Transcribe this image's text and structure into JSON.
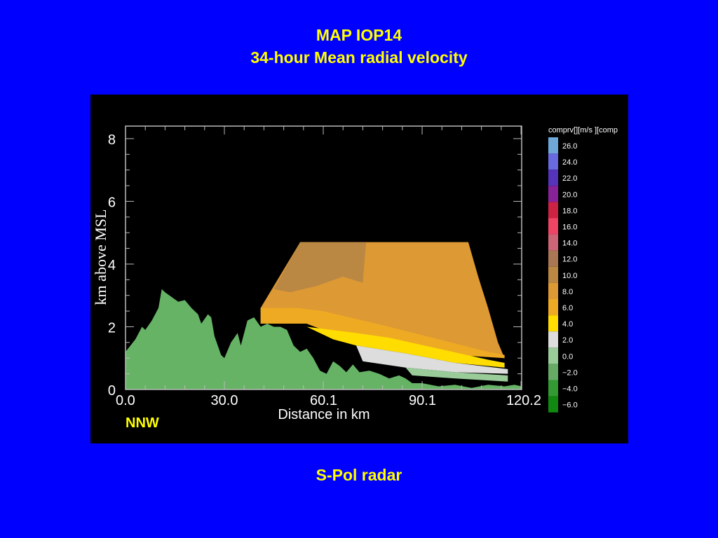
{
  "slide": {
    "title_line1": "MAP IOP14",
    "title_line2": "34-hour Mean radial velocity",
    "caption": "S-Pol radar"
  },
  "chart_data": {
    "type": "heatmap",
    "title": "",
    "xlabel": "Distance in km",
    "ylabel": "km above MSL",
    "direction_label": "NNW",
    "xlim": [
      0.0,
      120.2
    ],
    "ylim": [
      0,
      8.4
    ],
    "x_tick_labels": [
      "0.0",
      "30.0",
      "60.1",
      "90.1",
      "120.2"
    ],
    "x_ticks": [
      0.0,
      30.0,
      60.1,
      90.1,
      120.2
    ],
    "y_tick_labels": [
      "0",
      "2",
      "4",
      "6",
      "8"
    ],
    "y_ticks": [
      0,
      2,
      4,
      6,
      8
    ],
    "grid": false,
    "colorbar": {
      "title": "comprv[][m/s ][comp",
      "levels": [
        {
          "label": "26.0",
          "color": "#6fa8d8"
        },
        {
          "label": "24.0",
          "color": "#6a6ae0"
        },
        {
          "label": "22.0",
          "color": "#5533bb"
        },
        {
          "label": "20.0",
          "color": "#882299"
        },
        {
          "label": "18.0",
          "color": "#cc2244"
        },
        {
          "label": "16.0",
          "color": "#ee4466"
        },
        {
          "label": "14.0",
          "color": "#cc6677"
        },
        {
          "label": "12.0",
          "color": "#aa7755"
        },
        {
          "label": "10.0",
          "color": "#bb8844"
        },
        {
          "label": "8.0",
          "color": "#dd9933"
        },
        {
          "label": "6.0",
          "color": "#eeaa22"
        },
        {
          "label": "4.0",
          "color": "#ffdd00"
        },
        {
          "label": "2.0",
          "color": "#dddddd"
        },
        {
          "label": "0.0",
          "color": "#99cc99"
        },
        {
          "label": "−2.0",
          "color": "#66aa66"
        },
        {
          "label": "−4.0",
          "color": "#339933"
        },
        {
          "label": "−6.0",
          "color": "#118811"
        }
      ]
    },
    "terrain_profile": {
      "color": "#66b366",
      "points": [
        [
          0,
          1.2
        ],
        [
          3,
          1.6
        ],
        [
          5,
          2.0
        ],
        [
          6,
          1.9
        ],
        [
          8,
          2.2
        ],
        [
          10,
          2.6
        ],
        [
          11,
          3.2
        ],
        [
          12,
          3.1
        ],
        [
          14,
          2.95
        ],
        [
          16,
          2.8
        ],
        [
          18,
          2.85
        ],
        [
          20,
          2.6
        ],
        [
          22,
          2.4
        ],
        [
          23,
          2.1
        ],
        [
          25,
          2.4
        ],
        [
          26,
          2.3
        ],
        [
          27,
          1.7
        ],
        [
          29,
          1.1
        ],
        [
          30,
          1.0
        ],
        [
          32,
          1.5
        ],
        [
          34,
          1.8
        ],
        [
          35,
          1.4
        ],
        [
          37,
          2.2
        ],
        [
          39,
          2.3
        ],
        [
          41,
          2.0
        ],
        [
          43,
          2.1
        ],
        [
          45,
          2.0
        ],
        [
          47,
          2.0
        ],
        [
          49,
          1.9
        ],
        [
          51,
          1.4
        ],
        [
          53,
          1.2
        ],
        [
          55,
          1.3
        ],
        [
          57,
          1.0
        ],
        [
          59,
          0.6
        ],
        [
          61,
          0.5
        ],
        [
          63,
          0.9
        ],
        [
          65,
          0.75
        ],
        [
          67,
          0.55
        ],
        [
          69,
          0.8
        ],
        [
          71,
          0.55
        ],
        [
          74,
          0.6
        ],
        [
          77,
          0.5
        ],
        [
          80,
          0.35
        ],
        [
          83,
          0.45
        ],
        [
          85,
          0.35
        ],
        [
          87,
          0.2
        ],
        [
          90,
          0.2
        ],
        [
          95,
          0.1
        ],
        [
          100,
          0.15
        ],
        [
          105,
          0.05
        ],
        [
          110,
          0.15
        ],
        [
          115,
          0.1
        ],
        [
          118,
          0.15
        ],
        [
          120.2,
          0.1
        ]
      ]
    },
    "velocity_regions": [
      {
        "value_mps": 9,
        "color": "#dd9933",
        "polygon": [
          [
            41,
            2.1
          ],
          [
            41,
            2.6
          ],
          [
            53,
            4.7
          ],
          [
            104,
            4.7
          ],
          [
            107,
            3.6
          ],
          [
            110,
            2.6
          ],
          [
            113,
            1.5
          ],
          [
            115,
            1.0
          ],
          [
            60,
            1.9
          ],
          [
            55,
            2.1
          ]
        ]
      },
      {
        "value_mps": 11,
        "color": "#bb8844",
        "polygon": [
          [
            45,
            3.2
          ],
          [
            53,
            4.7
          ],
          [
            73,
            4.7
          ],
          [
            72,
            3.4
          ],
          [
            66,
            3.6
          ],
          [
            58,
            3.3
          ],
          [
            50,
            3.1
          ]
        ]
      },
      {
        "value_mps": 7,
        "color": "#eeaa22",
        "polygon": [
          [
            41,
            2.1
          ],
          [
            41,
            2.6
          ],
          [
            52,
            2.6
          ],
          [
            60,
            2.5
          ],
          [
            68,
            2.3
          ],
          [
            80,
            2.0
          ],
          [
            95,
            1.6
          ],
          [
            110,
            1.2
          ],
          [
            115,
            1.1
          ],
          [
            115,
            1.0
          ],
          [
            100,
            1.1
          ],
          [
            80,
            1.5
          ],
          [
            60,
            1.9
          ],
          [
            55,
            2.1
          ]
        ]
      },
      {
        "value_mps": 4,
        "color": "#ffdd00",
        "polygon": [
          [
            55,
            2.0
          ],
          [
            70,
            1.8
          ],
          [
            80,
            1.65
          ],
          [
            95,
            1.3
          ],
          [
            110,
            0.95
          ],
          [
            115,
            0.85
          ],
          [
            115,
            0.7
          ],
          [
            100,
            0.85
          ],
          [
            85,
            1.15
          ],
          [
            70,
            1.4
          ],
          [
            63,
            1.6
          ]
        ]
      },
      {
        "value_mps": 2,
        "color": "#dddddd",
        "polygon": [
          [
            70,
            1.4
          ],
          [
            85,
            1.15
          ],
          [
            100,
            0.85
          ],
          [
            116,
            0.65
          ],
          [
            116,
            0.5
          ],
          [
            100,
            0.55
          ],
          [
            85,
            0.7
          ],
          [
            72,
            0.9
          ]
        ]
      },
      {
        "value_mps": 0,
        "color": "#99cc99",
        "polygon": [
          [
            85,
            0.7
          ],
          [
            100,
            0.55
          ],
          [
            116,
            0.45
          ],
          [
            116,
            0.25
          ],
          [
            100,
            0.35
          ],
          [
            87,
            0.45
          ]
        ]
      }
    ]
  }
}
